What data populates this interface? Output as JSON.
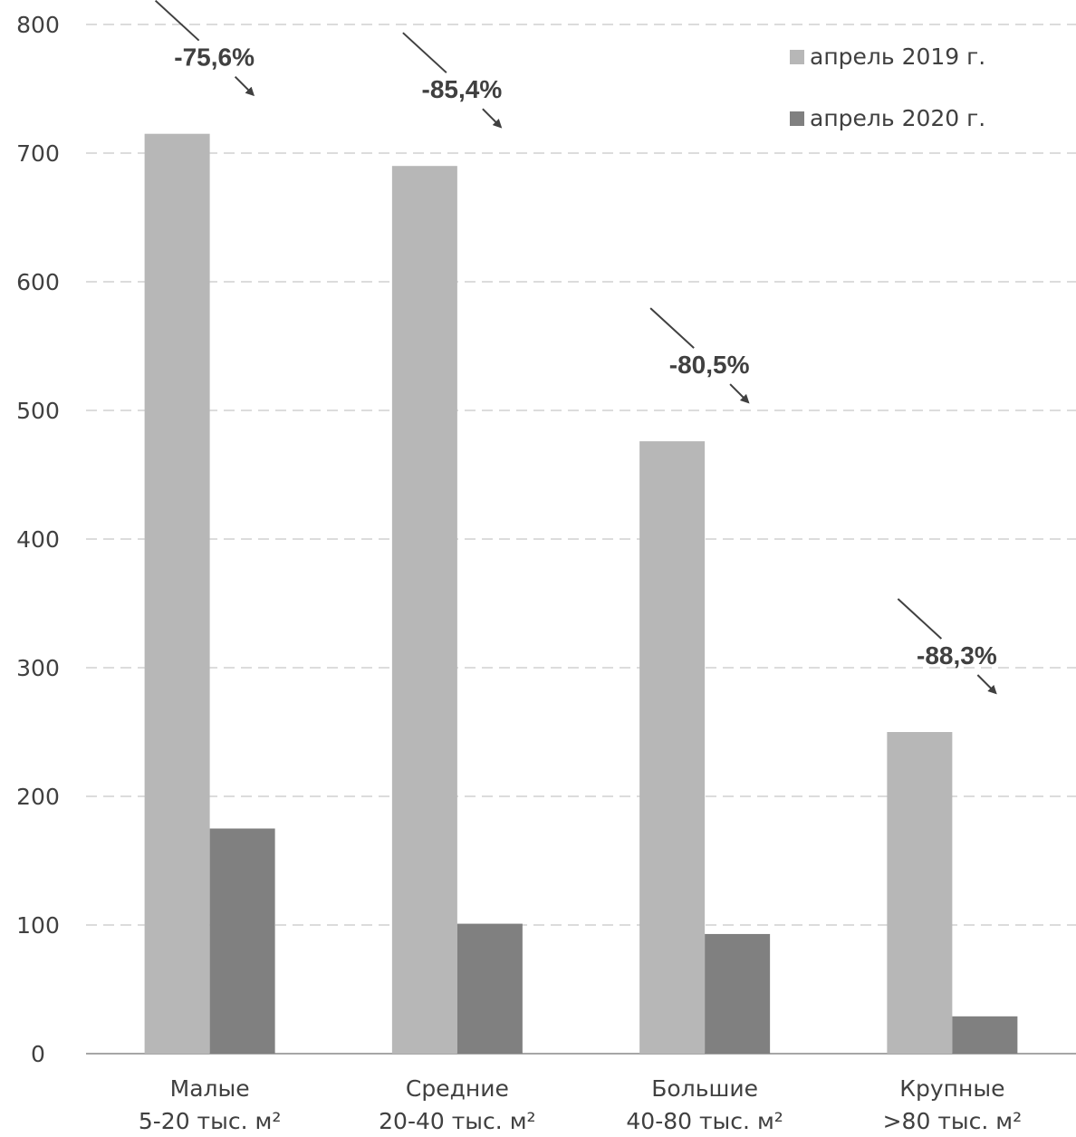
{
  "chart_data": {
    "type": "bar",
    "categories": [
      [
        "Малые",
        "5-20 тыс. м²"
      ],
      [
        "Средние",
        "20-40 тыс. м²"
      ],
      [
        "Большие",
        "40-80 тыс. м²"
      ],
      [
        "Крупные",
        ">80 тыс. м²"
      ]
    ],
    "series": [
      {
        "name": "апрель 2019 г.",
        "values": [
          715,
          690,
          476,
          250
        ],
        "color": "#b7b7b7"
      },
      {
        "name": "апрель 2020 г.",
        "values": [
          175,
          101,
          93,
          29
        ],
        "color": "#808080"
      }
    ],
    "annotations": [
      "-75,6%",
      "-85,4%",
      "-80,5%",
      "-88,3%"
    ],
    "ylim": [
      0,
      800
    ],
    "yticks": [
      0,
      100,
      200,
      300,
      400,
      500,
      600,
      700,
      800
    ],
    "grid": true,
    "legend_position": "top-right",
    "title": "",
    "xlabel": "",
    "ylabel": ""
  }
}
